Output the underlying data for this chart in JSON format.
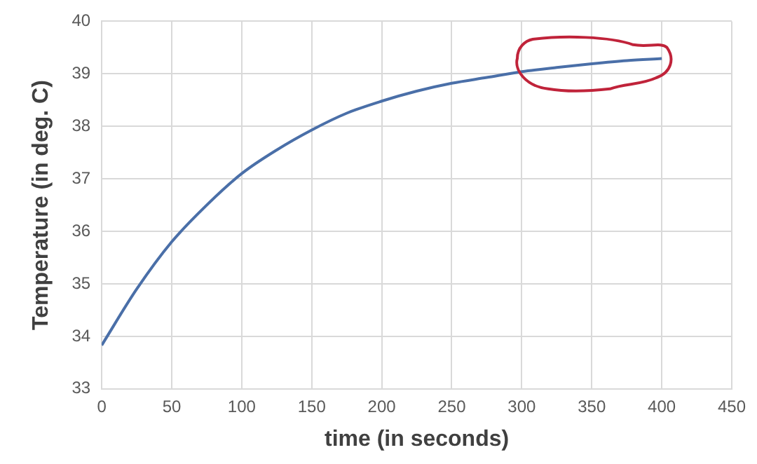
{
  "chart_data": {
    "type": "line",
    "xlabel": "time (in seconds)",
    "ylabel": "Temperature (in deg. C)",
    "x": [
      0,
      25,
      50,
      75,
      100,
      125,
      150,
      175,
      200,
      225,
      250,
      275,
      300,
      325,
      350,
      375,
      400
    ],
    "series": [
      {
        "color": "#4a6fa8",
        "values": [
          33.83,
          34.9,
          35.8,
          36.5,
          37.1,
          37.55,
          37.93,
          38.25,
          38.48,
          38.67,
          38.82,
          38.93,
          39.04,
          39.12,
          39.19,
          39.25,
          39.29
        ]
      }
    ],
    "xlim": [
      0,
      450
    ],
    "xticks": [
      0,
      50,
      100,
      150,
      200,
      250,
      300,
      350,
      400,
      450
    ],
    "ylim": [
      33,
      40
    ],
    "yticks": [
      33,
      34,
      35,
      36,
      37,
      38,
      39,
      40
    ],
    "grid": true,
    "legend": false,
    "marker": "none",
    "line_style": "solid"
  }
}
